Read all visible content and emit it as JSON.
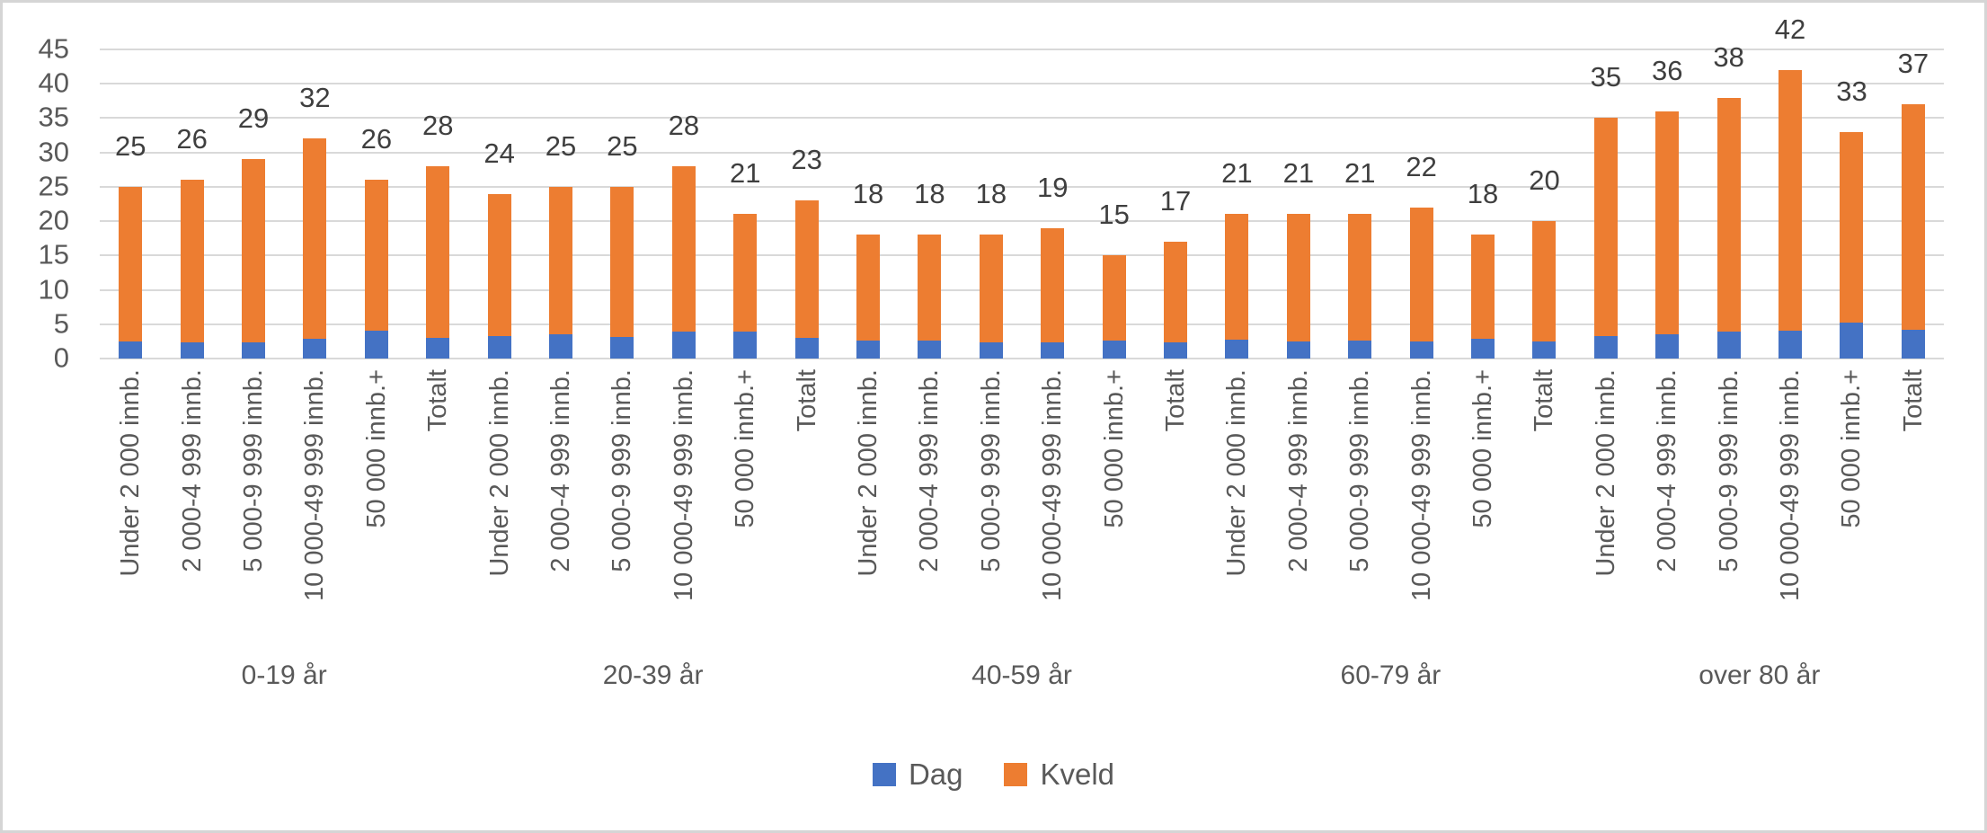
{
  "chart_data": {
    "type": "bar",
    "stacked": true,
    "title": "",
    "xlabel": "",
    "ylabel": "",
    "ylim": [
      0,
      45
    ],
    "yticks": [
      0,
      5,
      10,
      15,
      20,
      25,
      30,
      35,
      40,
      45
    ],
    "grid": true,
    "legend_position": "bottom",
    "bar_categories": [
      "Under 2 000 innb.",
      "2 000-4 999 innb.",
      "5 000-9 999 innb.",
      "10 000-49 999 innb.",
      "50 000 innb.+",
      "Totalt"
    ],
    "series": [
      {
        "name": "Dag",
        "color": "#4472C4"
      },
      {
        "name": "Kveld",
        "color": "#ED7D31"
      }
    ],
    "groups": [
      {
        "label": "0-19 år",
        "dag_values": [
          2.5,
          2.4,
          2.3,
          2.9,
          4.0,
          3.0
        ],
        "kveld_values": [
          22.5,
          23.6,
          26.7,
          29.1,
          22.0,
          25.0
        ],
        "total_labels": [
          25,
          26,
          29,
          32,
          26,
          28
        ]
      },
      {
        "label": "20-39 år",
        "dag_values": [
          3.3,
          3.5,
          3.1,
          3.9,
          3.9,
          3.0
        ],
        "kveld_values": [
          20.7,
          21.5,
          21.9,
          24.1,
          17.1,
          20.0
        ],
        "total_labels": [
          24,
          25,
          25,
          28,
          21,
          23
        ]
      },
      {
        "label": "40-59 år",
        "dag_values": [
          2.6,
          2.6,
          2.4,
          2.4,
          2.6,
          2.3
        ],
        "kveld_values": [
          15.4,
          15.4,
          15.6,
          16.6,
          12.4,
          14.7
        ],
        "total_labels": [
          18,
          18,
          18,
          19,
          15,
          17
        ]
      },
      {
        "label": "60-79 år",
        "dag_values": [
          2.8,
          2.5,
          2.6,
          2.5,
          2.9,
          2.5
        ],
        "kveld_values": [
          18.2,
          18.5,
          18.4,
          19.5,
          15.1,
          17.5
        ],
        "total_labels": [
          21,
          21,
          21,
          22,
          18,
          20
        ]
      },
      {
        "label": "over 80 år",
        "dag_values": [
          3.3,
          3.5,
          3.9,
          4.0,
          5.3,
          4.2
        ],
        "kveld_values": [
          31.7,
          32.5,
          34.1,
          38.0,
          27.7,
          32.8
        ],
        "total_labels": [
          35,
          36,
          38,
          42,
          33,
          37
        ]
      }
    ]
  },
  "colors": {
    "dag": "#4472C4",
    "kveld": "#ED7D31",
    "gridline": "#D9D9D9",
    "axis_text": "#595959",
    "data_label_text": "#3F3F3F",
    "frame_border": "#D5D5D5",
    "background": "#FFFFFF"
  }
}
